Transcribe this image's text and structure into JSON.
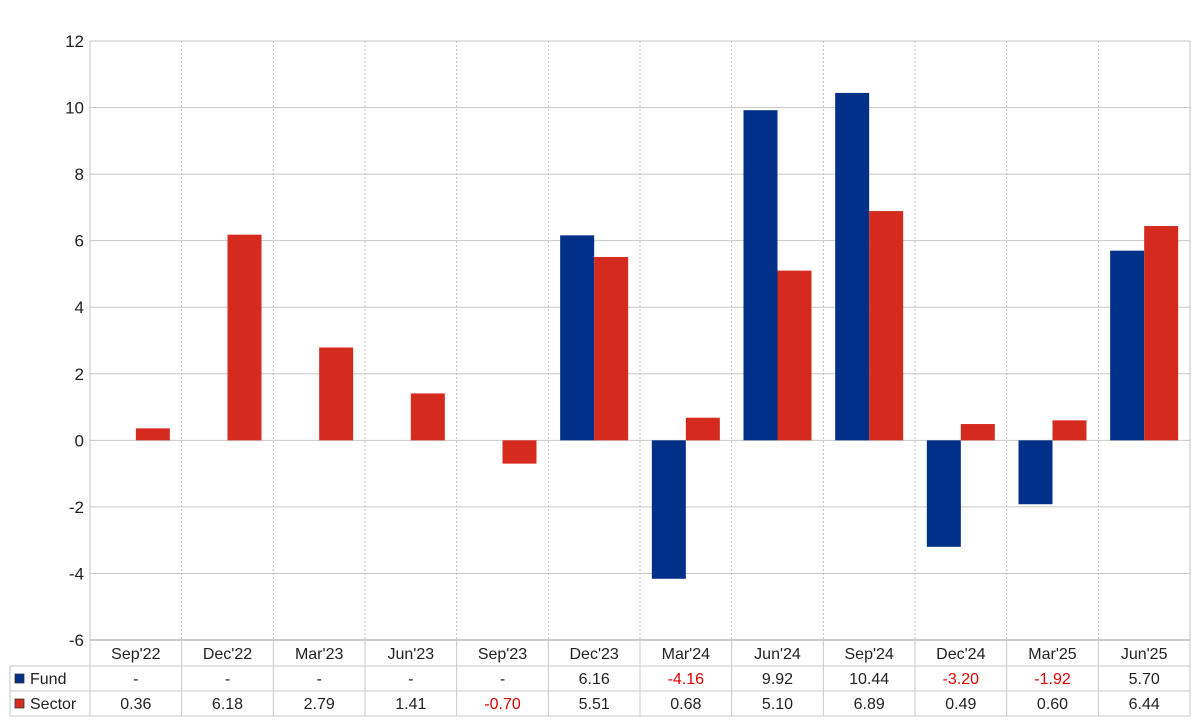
{
  "chart_data": {
    "type": "bar",
    "categories": [
      "Sep'22",
      "Dec'22",
      "Mar'23",
      "Jun'23",
      "Sep'23",
      "Dec'23",
      "Mar'24",
      "Jun'24",
      "Sep'24",
      "Dec'24",
      "Mar'25",
      "Jun'25"
    ],
    "series": [
      {
        "name": "Fund",
        "color": "#003087",
        "values": [
          null,
          null,
          null,
          null,
          null,
          6.16,
          -4.16,
          9.92,
          10.44,
          -3.2,
          -1.92,
          5.7
        ],
        "labels": [
          "-",
          "-",
          "-",
          "-",
          "-",
          "6.16",
          "-4.16",
          "9.92",
          "10.44",
          "-3.20",
          "-1.92",
          "5.70"
        ]
      },
      {
        "name": "Sector",
        "color": "#d52b1e",
        "values": [
          0.36,
          6.18,
          2.79,
          1.41,
          -0.7,
          5.51,
          0.68,
          5.1,
          6.89,
          0.49,
          0.6,
          6.44
        ],
        "labels": [
          "0.36",
          "6.18",
          "2.79",
          "1.41",
          "-0.70",
          "5.51",
          "0.68",
          "5.10",
          "6.89",
          "0.49",
          "0.60",
          "6.44"
        ]
      }
    ],
    "ylim": [
      -6,
      12
    ],
    "yticks": [
      "12",
      "10",
      "8",
      "6",
      "4",
      "2",
      "0",
      "-2",
      "-4",
      "-6"
    ],
    "grid": true,
    "legend": "table-bottom",
    "negative_color": "#e00000"
  }
}
